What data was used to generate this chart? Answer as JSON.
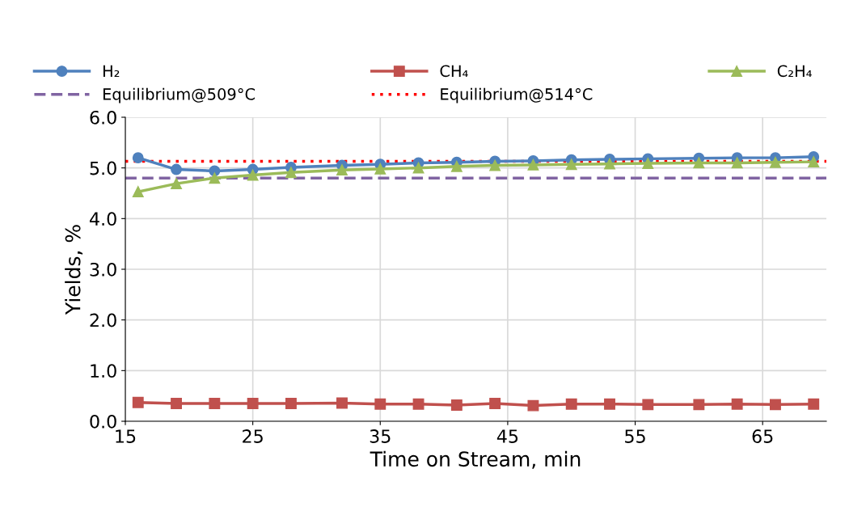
{
  "chart_data": {
    "type": "line",
    "xlabel": "Time on Stream, min",
    "ylabel": "Yields, %",
    "x": [
      16,
      19,
      22,
      25,
      28,
      32,
      35,
      38,
      41,
      44,
      47,
      50,
      53,
      56,
      60,
      63,
      66,
      69
    ],
    "series": [
      {
        "name": "H₂",
        "color": "#4f81bd",
        "marker": "circle",
        "values": [
          5.2,
          4.97,
          4.94,
          4.97,
          5.01,
          5.05,
          5.07,
          5.1,
          5.11,
          5.13,
          5.14,
          5.16,
          5.17,
          5.18,
          5.19,
          5.2,
          5.2,
          5.22
        ]
      },
      {
        "name": "CH₄",
        "color": "#c0504d",
        "marker": "square",
        "values": [
          0.37,
          0.35,
          0.35,
          0.35,
          0.35,
          0.36,
          0.34,
          0.34,
          0.32,
          0.35,
          0.31,
          0.34,
          0.34,
          0.33,
          0.33,
          0.34,
          0.33,
          0.34
        ]
      },
      {
        "name": "C₂H₄",
        "color": "#9bbb59",
        "marker": "triangle",
        "values": [
          4.53,
          4.69,
          4.8,
          4.86,
          4.91,
          4.96,
          4.98,
          5.0,
          5.03,
          5.05,
          5.06,
          5.07,
          5.08,
          5.09,
          5.1,
          5.1,
          5.11,
          5.12
        ]
      }
    ],
    "ref_lines": [
      {
        "axis": "y",
        "value": 4.8,
        "label": "Equilibrium@509°C",
        "color": "#8064a2",
        "line_style": "dashed"
      },
      {
        "axis": "y",
        "value": 5.13,
        "label": "Equilibrium@514°C",
        "color": "#ff0000",
        "line_style": "dotted"
      }
    ],
    "xlim": [
      15,
      70
    ],
    "xticks": [
      15,
      25,
      35,
      45,
      55,
      65
    ],
    "ylim": [
      0,
      6
    ],
    "yticks": [
      {
        "value": 0,
        "label": "0.0"
      },
      {
        "value": 1,
        "label": "1.0"
      },
      {
        "value": 2,
        "label": "2.0"
      },
      {
        "value": 3,
        "label": "3.0"
      },
      {
        "value": 4,
        "label": "4.0"
      },
      {
        "value": 5,
        "label": "5.0"
      },
      {
        "value": 6,
        "label": "6.0"
      }
    ],
    "grid": true,
    "legend": "top"
  }
}
